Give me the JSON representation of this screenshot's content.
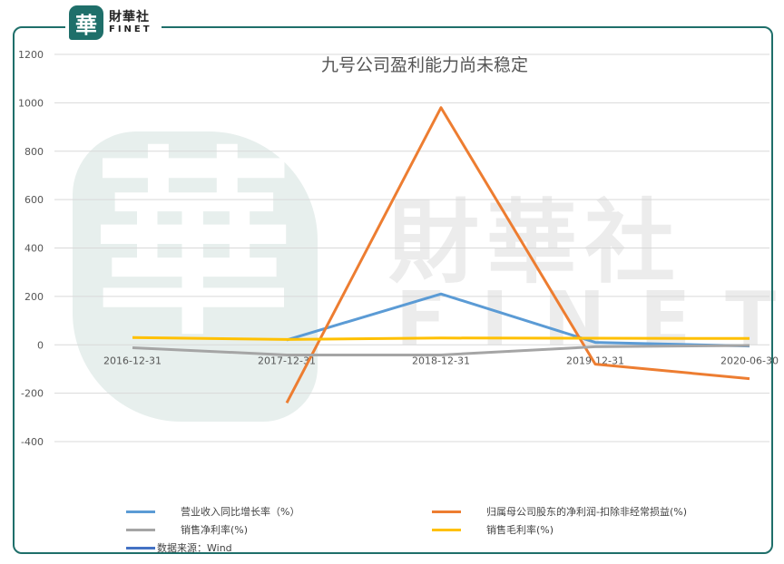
{
  "brand": {
    "mark": "華",
    "name_cn": "財華社",
    "name_en": "FINET"
  },
  "watermark": {
    "mark": "華",
    "name_cn": "財華社",
    "name_en": "FINET"
  },
  "source_note": "数据来源：Wind",
  "colors": {
    "frame": "#1f6f6a",
    "grid": "#d9d9d9",
    "axis_text": "#555555",
    "source_swatch": "#4472c4"
  },
  "chart_data": {
    "type": "line",
    "title": "九号公司盈利能力尚未稳定",
    "xlabel": "",
    "ylabel": "",
    "categories": [
      "2016-12-31",
      "2017-12-31",
      "2018-12-31",
      "2019-12-31",
      "2020-06-30"
    ],
    "ylim": [
      -400,
      1200
    ],
    "yticks": [
      1200,
      1000,
      800,
      600,
      400,
      200,
      0,
      -200,
      -400
    ],
    "grid": true,
    "legend_position": "bottom",
    "series": [
      {
        "name": "营业收入同比增长率（%）",
        "color": "#5b9bd5",
        "values": [
          null,
          20,
          210,
          10,
          -5
        ]
      },
      {
        "name": "归属母公司股东的净利润-扣除非经常损益(%)",
        "color": "#ed7d31",
        "values": [
          null,
          -240,
          980,
          -80,
          -140
        ]
      },
      {
        "name": "销售净利率(%)",
        "color": "#a5a5a5",
        "values": [
          -12,
          -42,
          -42,
          -8,
          -3
        ]
      },
      {
        "name": "销售毛利率(%)",
        "color": "#ffc000",
        "values": [
          30,
          22,
          28,
          27,
          26
        ]
      }
    ]
  }
}
